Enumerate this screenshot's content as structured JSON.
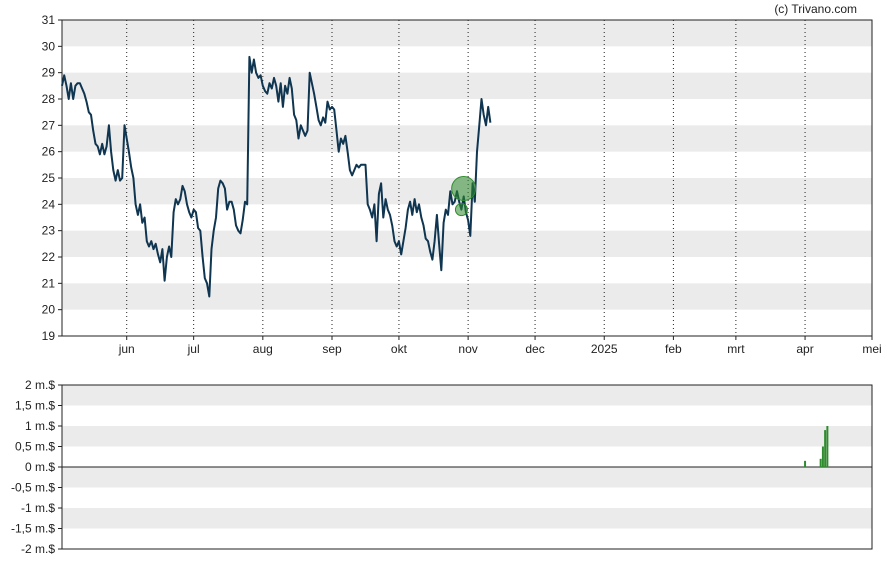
{
  "copyright": "(c) Trivano.com",
  "chart_data": [
    {
      "type": "line",
      "title": "",
      "xlabel": "",
      "ylabel": "",
      "ylim": [
        19,
        31
      ],
      "yticks": [
        "19",
        "20",
        "21",
        "22",
        "23",
        "24",
        "25",
        "26",
        "27",
        "28",
        "29",
        "30",
        "31"
      ],
      "xlim": [
        "2024-05-03",
        "2025-05-01"
      ],
      "xticks": [
        {
          "label": "jun",
          "date": "2024-06-01"
        },
        {
          "label": "jul",
          "date": "2024-07-01"
        },
        {
          "label": "aug",
          "date": "2024-08-01"
        },
        {
          "label": "sep",
          "date": "2024-09-01"
        },
        {
          "label": "okt",
          "date": "2024-10-01"
        },
        {
          "label": "nov",
          "date": "2024-11-01"
        },
        {
          "label": "dec",
          "date": "2024-12-01"
        },
        {
          "label": "2025",
          "date": "2025-01-01"
        },
        {
          "label": "feb",
          "date": "2025-02-01"
        },
        {
          "label": "mrt",
          "date": "2025-03-01"
        },
        {
          "label": "apr",
          "date": "2025-04-01"
        },
        {
          "label": "mei",
          "date": "2025-05-01"
        }
      ],
      "grid": "alternating horizontal bands, dotted vertical lines at month starts",
      "line_color": "#0f3550",
      "marker_color": "#2e8b2e",
      "series": [
        {
          "values": [
            [
              "2024-05-03",
              28.5
            ],
            [
              "2024-05-04",
              28.9
            ],
            [
              "2024-05-05",
              28.5
            ],
            [
              "2024-05-06",
              28.0
            ],
            [
              "2024-05-07",
              28.6
            ],
            [
              "2024-05-08",
              28.0
            ],
            [
              "2024-05-09",
              28.5
            ],
            [
              "2024-05-10",
              28.6
            ],
            [
              "2024-05-11",
              28.6
            ],
            [
              "2024-05-12",
              28.4
            ],
            [
              "2024-05-13",
              28.2
            ],
            [
              "2024-05-14",
              27.9
            ],
            [
              "2024-05-15",
              27.5
            ],
            [
              "2024-05-16",
              27.4
            ],
            [
              "2024-05-17",
              26.8
            ],
            [
              "2024-05-18",
              26.3
            ],
            [
              "2024-05-19",
              26.2
            ],
            [
              "2024-05-20",
              25.9
            ],
            [
              "2024-05-21",
              26.3
            ],
            [
              "2024-05-22",
              25.9
            ],
            [
              "2024-05-23",
              26.2
            ],
            [
              "2024-05-24",
              27.0
            ],
            [
              "2024-05-25",
              26.0
            ],
            [
              "2024-05-26",
              25.3
            ],
            [
              "2024-05-27",
              24.9
            ],
            [
              "2024-05-28",
              25.3
            ],
            [
              "2024-05-29",
              24.9
            ],
            [
              "2024-05-30",
              25.0
            ],
            [
              "2024-05-31",
              27.0
            ],
            [
              "2024-06-01",
              26.5
            ],
            [
              "2024-06-02",
              26.0
            ],
            [
              "2024-06-03",
              25.4
            ],
            [
              "2024-06-04",
              25.0
            ],
            [
              "2024-06-05",
              24.0
            ],
            [
              "2024-06-06",
              23.6
            ],
            [
              "2024-06-07",
              24.0
            ],
            [
              "2024-06-08",
              23.3
            ],
            [
              "2024-06-09",
              23.5
            ],
            [
              "2024-06-10",
              22.6
            ],
            [
              "2024-06-11",
              22.4
            ],
            [
              "2024-06-12",
              22.6
            ],
            [
              "2024-06-13",
              22.3
            ],
            [
              "2024-06-14",
              22.5
            ],
            [
              "2024-06-15",
              22.1
            ],
            [
              "2024-06-16",
              21.8
            ],
            [
              "2024-06-17",
              22.3
            ],
            [
              "2024-06-18",
              21.1
            ],
            [
              "2024-06-19",
              22.0
            ],
            [
              "2024-06-20",
              22.4
            ],
            [
              "2024-06-21",
              22.0
            ],
            [
              "2024-06-22",
              23.7
            ],
            [
              "2024-06-23",
              24.2
            ],
            [
              "2024-06-24",
              24.0
            ],
            [
              "2024-06-25",
              24.2
            ],
            [
              "2024-06-26",
              24.7
            ],
            [
              "2024-06-27",
              24.5
            ],
            [
              "2024-06-28",
              24.0
            ],
            [
              "2024-06-29",
              23.7
            ],
            [
              "2024-06-30",
              23.5
            ],
            [
              "2024-07-01",
              23.8
            ],
            [
              "2024-07-02",
              23.7
            ],
            [
              "2024-07-03",
              23.1
            ],
            [
              "2024-07-04",
              23.0
            ],
            [
              "2024-07-05",
              22.0
            ],
            [
              "2024-07-06",
              21.2
            ],
            [
              "2024-07-07",
              21.0
            ],
            [
              "2024-07-08",
              20.5
            ],
            [
              "2024-07-09",
              22.3
            ],
            [
              "2024-07-10",
              23.0
            ],
            [
              "2024-07-11",
              23.5
            ],
            [
              "2024-07-12",
              24.6
            ],
            [
              "2024-07-13",
              24.9
            ],
            [
              "2024-07-14",
              24.8
            ],
            [
              "2024-07-15",
              24.6
            ],
            [
              "2024-07-16",
              23.8
            ],
            [
              "2024-07-17",
              24.1
            ],
            [
              "2024-07-18",
              24.1
            ],
            [
              "2024-07-19",
              23.8
            ],
            [
              "2024-07-20",
              23.2
            ],
            [
              "2024-07-21",
              23.0
            ],
            [
              "2024-07-22",
              22.9
            ],
            [
              "2024-07-23",
              23.4
            ],
            [
              "2024-07-24",
              24.1
            ],
            [
              "2024-07-25",
              24.0
            ],
            [
              "2024-07-26",
              29.6
            ],
            [
              "2024-07-27",
              29.0
            ],
            [
              "2024-07-28",
              29.5
            ],
            [
              "2024-07-29",
              29.0
            ],
            [
              "2024-07-30",
              28.8
            ],
            [
              "2024-07-31",
              28.9
            ],
            [
              "2024-08-01",
              28.5
            ],
            [
              "2024-08-02",
              28.3
            ],
            [
              "2024-08-03",
              28.2
            ],
            [
              "2024-08-04",
              28.6
            ],
            [
              "2024-08-05",
              28.4
            ],
            [
              "2024-08-06",
              28.8
            ],
            [
              "2024-08-07",
              28.5
            ],
            [
              "2024-08-08",
              27.9
            ],
            [
              "2024-08-09",
              28.6
            ],
            [
              "2024-08-10",
              27.7
            ],
            [
              "2024-08-11",
              28.5
            ],
            [
              "2024-08-12",
              28.2
            ],
            [
              "2024-08-13",
              28.8
            ],
            [
              "2024-08-14",
              28.4
            ],
            [
              "2024-08-15",
              27.4
            ],
            [
              "2024-08-16",
              27.2
            ],
            [
              "2024-08-17",
              26.5
            ],
            [
              "2024-08-18",
              27.0
            ],
            [
              "2024-08-19",
              26.8
            ],
            [
              "2024-08-20",
              26.6
            ],
            [
              "2024-08-21",
              26.8
            ],
            [
              "2024-08-22",
              29.0
            ],
            [
              "2024-08-23",
              28.6
            ],
            [
              "2024-08-24",
              28.2
            ],
            [
              "2024-08-25",
              27.7
            ],
            [
              "2024-08-26",
              27.2
            ],
            [
              "2024-08-27",
              27.0
            ],
            [
              "2024-08-28",
              27.3
            ],
            [
              "2024-08-29",
              27.1
            ],
            [
              "2024-08-30",
              27.9
            ],
            [
              "2024-08-31",
              27.6
            ],
            [
              "2024-09-01",
              27.7
            ],
            [
              "2024-09-02",
              27.6
            ],
            [
              "2024-09-03",
              26.8
            ],
            [
              "2024-09-04",
              26.0
            ],
            [
              "2024-09-05",
              26.5
            ],
            [
              "2024-09-06",
              26.3
            ],
            [
              "2024-09-07",
              26.6
            ],
            [
              "2024-09-08",
              26.0
            ],
            [
              "2024-09-09",
              25.3
            ],
            [
              "2024-09-10",
              25.1
            ],
            [
              "2024-09-11",
              25.3
            ],
            [
              "2024-09-12",
              25.5
            ],
            [
              "2024-09-13",
              25.4
            ],
            [
              "2024-09-14",
              25.5
            ],
            [
              "2024-09-15",
              25.5
            ],
            [
              "2024-09-16",
              25.5
            ],
            [
              "2024-09-17",
              24.0
            ],
            [
              "2024-09-18",
              23.8
            ],
            [
              "2024-09-19",
              23.5
            ],
            [
              "2024-09-20",
              24.0
            ],
            [
              "2024-09-21",
              22.6
            ],
            [
              "2024-09-22",
              24.4
            ],
            [
              "2024-09-23",
              24.8
            ],
            [
              "2024-09-24",
              23.5
            ],
            [
              "2024-09-25",
              24.2
            ],
            [
              "2024-09-26",
              23.8
            ],
            [
              "2024-09-27",
              23.6
            ],
            [
              "2024-09-28",
              23.2
            ],
            [
              "2024-09-29",
              22.6
            ],
            [
              "2024-09-30",
              22.4
            ],
            [
              "2024-10-01",
              22.6
            ],
            [
              "2024-10-02",
              22.1
            ],
            [
              "2024-10-03",
              22.6
            ],
            [
              "2024-10-04",
              23.1
            ],
            [
              "2024-10-05",
              23.8
            ],
            [
              "2024-10-06",
              24.1
            ],
            [
              "2024-10-07",
              23.6
            ],
            [
              "2024-10-08",
              24.2
            ],
            [
              "2024-10-09",
              23.7
            ],
            [
              "2024-10-10",
              24.0
            ],
            [
              "2024-10-11",
              23.5
            ],
            [
              "2024-10-12",
              23.2
            ],
            [
              "2024-10-13",
              22.7
            ],
            [
              "2024-10-14",
              22.6
            ],
            [
              "2024-10-15",
              22.2
            ],
            [
              "2024-10-16",
              21.9
            ],
            [
              "2024-10-17",
              22.6
            ],
            [
              "2024-10-18",
              23.6
            ],
            [
              "2024-10-19",
              22.5
            ],
            [
              "2024-10-20",
              21.5
            ],
            [
              "2024-10-21",
              23.3
            ],
            [
              "2024-10-22",
              23.8
            ],
            [
              "2024-10-23",
              23.6
            ],
            [
              "2024-10-24",
              24.5
            ],
            [
              "2024-10-25",
              24.0
            ],
            [
              "2024-10-26",
              24.1
            ],
            [
              "2024-10-27",
              24.5
            ],
            [
              "2024-10-28",
              24.1
            ],
            [
              "2024-10-29",
              23.8
            ],
            [
              "2024-10-30",
              24.3
            ],
            [
              "2024-10-31",
              23.7
            ],
            [
              "2024-11-01",
              23.4
            ],
            [
              "2024-11-02",
              22.8
            ],
            [
              "2024-11-03",
              24.8
            ],
            [
              "2024-11-04",
              24.1
            ],
            [
              "2024-11-05",
              26.0
            ],
            [
              "2024-11-06",
              27.0
            ],
            [
              "2024-11-07",
              28.0
            ],
            [
              "2024-11-08",
              27.4
            ],
            [
              "2024-11-09",
              27.0
            ],
            [
              "2024-11-10",
              27.7
            ],
            [
              "2024-11-11",
              27.1
            ]
          ]
        }
      ],
      "markers": [
        {
          "x": "2024-10-30",
          "y": 24.6,
          "size": "large"
        },
        {
          "x": "2024-10-29",
          "y": 23.8,
          "size": "small"
        }
      ]
    },
    {
      "type": "bar",
      "title": "",
      "xlabel": "",
      "ylabel": "",
      "ylim": [
        -2,
        2
      ],
      "yticks": [
        "-2 m.$",
        "-1,5 m.$",
        "-1 m.$",
        "-0,5 m.$",
        "0 m.$",
        "0,5 m.$",
        "1 m.$",
        "1,5 m.$",
        "2 m.$"
      ],
      "bar_color": "#2e8b2e",
      "values": [
        [
          "2025-04-01",
          0.15
        ],
        [
          "2025-04-08",
          0.2
        ],
        [
          "2025-04-09",
          0.5
        ],
        [
          "2025-04-10",
          0.9
        ],
        [
          "2025-04-11",
          1.0
        ]
      ]
    }
  ]
}
